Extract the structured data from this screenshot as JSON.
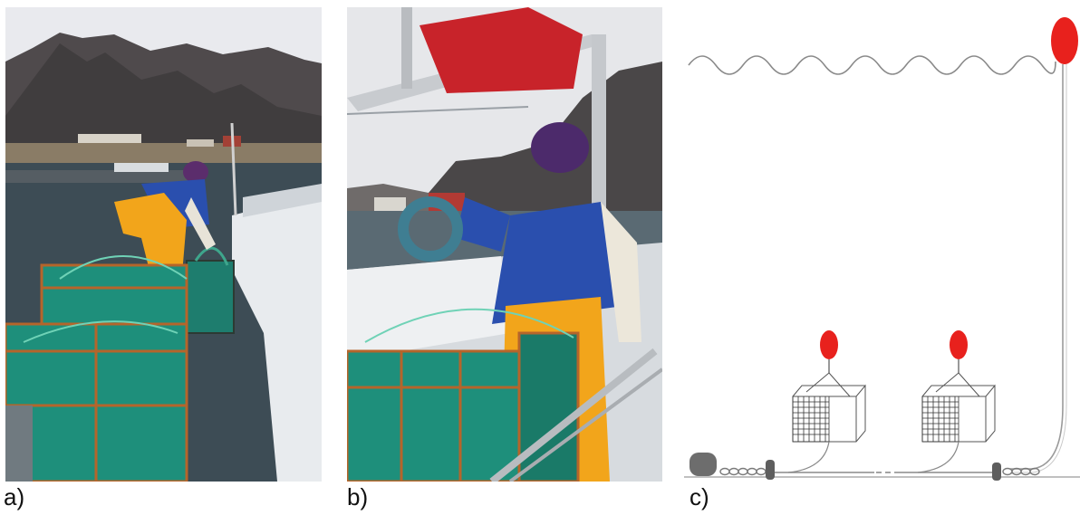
{
  "captions": {
    "a": "a)",
    "b": "b)",
    "c": "c)"
  },
  "colors": {
    "buoy": "#e8211d",
    "pot_mesh": "#1e8f7b",
    "pot_frame": "#b5652b",
    "jacket": "#2a4fae",
    "bib_pants": "#f2a51b",
    "line": "#8a8a8a"
  }
}
